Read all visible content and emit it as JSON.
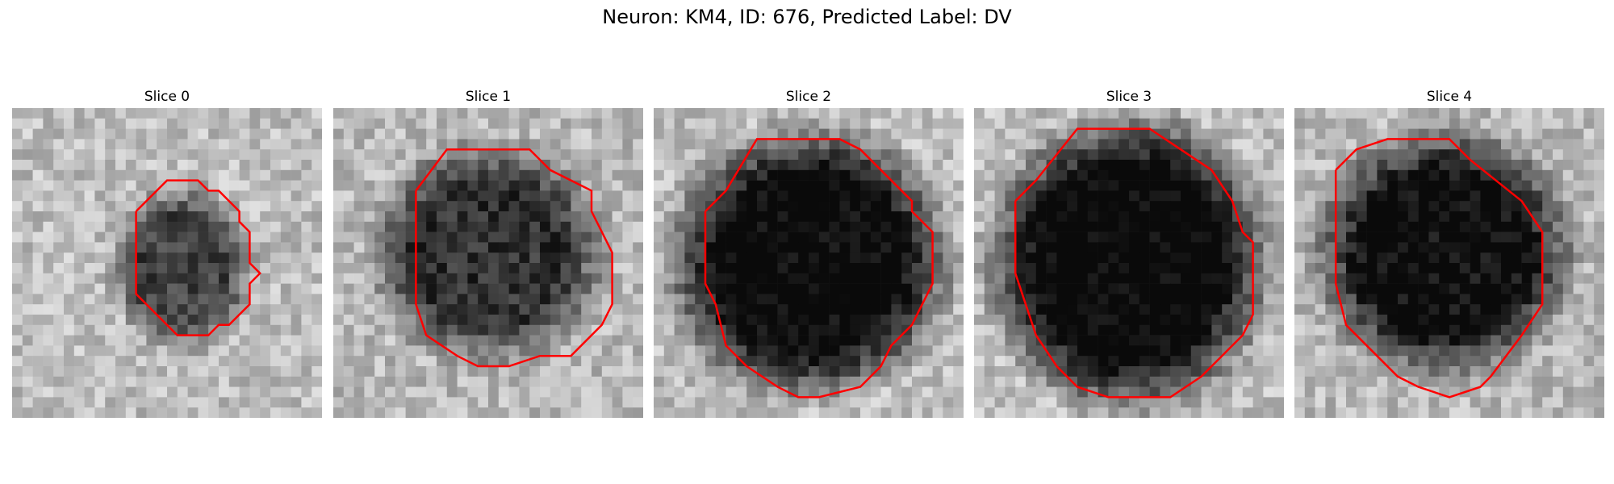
{
  "figure": {
    "title": "Neuron: KM4, ID: 676, Predicted Label: DV"
  },
  "panels": [
    {
      "title": "Slice 0"
    },
    {
      "title": "Slice 1"
    },
    {
      "title": "Slice 2"
    },
    {
      "title": "Slice 3"
    },
    {
      "title": "Slice 4"
    }
  ],
  "colors": {
    "contour": "#ff0000",
    "background": "#ffffff"
  }
}
